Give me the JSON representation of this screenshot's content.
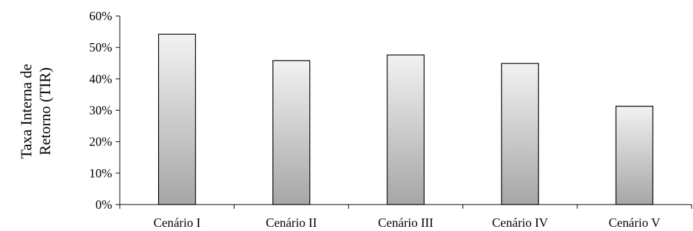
{
  "chart_data": {
    "type": "bar",
    "title": "",
    "xlabel": "",
    "ylabel_lines": [
      "Taxa Interna de",
      "Retorno (TIR)"
    ],
    "categories": [
      "Cenário I",
      "Cenário II",
      "Cenário III",
      "Cenário IV",
      "Cenário V"
    ],
    "values": [
      54.2,
      45.8,
      47.6,
      44.9,
      31.3
    ],
    "unit": "%",
    "ylim": [
      0,
      60
    ],
    "yticks": [
      0,
      10,
      20,
      30,
      40,
      50,
      60
    ],
    "ytick_labels": [
      "0%",
      "10%",
      "20%",
      "30%",
      "40%",
      "50%",
      "60%"
    ],
    "grid": false,
    "legend": "none",
    "bar_gradient": [
      "#f2f2f2",
      "#a6a6a6"
    ],
    "bar_stroke": "#000000"
  }
}
